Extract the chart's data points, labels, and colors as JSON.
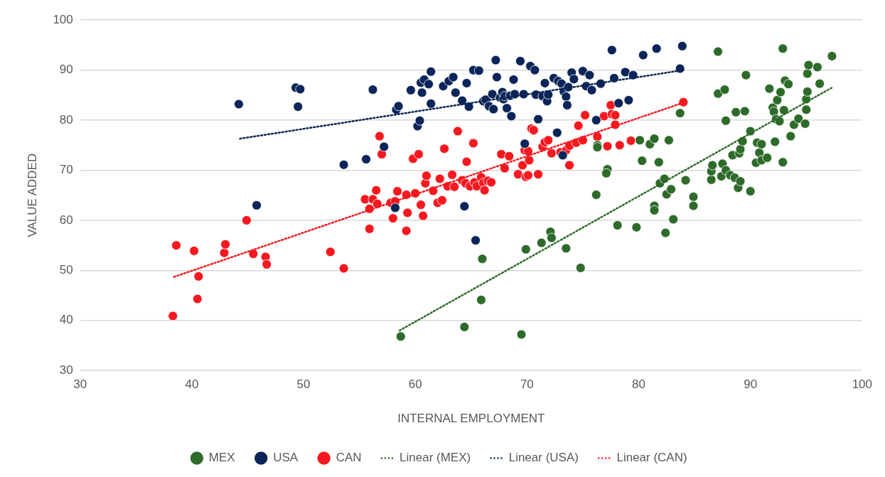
{
  "chart_data": {
    "type": "scatter",
    "xlabel": "INTERNAL EMPLOYMENT",
    "ylabel": "VALUE ADDED",
    "xlim": [
      30,
      100
    ],
    "xticks": [
      30,
      40,
      50,
      60,
      70,
      80,
      90,
      100
    ],
    "ylim": [
      30,
      100
    ],
    "yticks": [
      30,
      40,
      50,
      60,
      70,
      80,
      90,
      100
    ],
    "grid": "y",
    "legend": "bottom",
    "marker": "circle",
    "series": [
      {
        "name": "MEX",
        "color": "#2e6b2a",
        "x": [
          58.7,
          64.4,
          65.9,
          66,
          69.5,
          69.9,
          71.3,
          72.1,
          72.2,
          73.5,
          74.8,
          76.2,
          76.3,
          76.3,
          77.2,
          77.1,
          78.1,
          79.8,
          80.3,
          80.1,
          81.0,
          81.4,
          81.4,
          81.4,
          81.8,
          81.9,
          82.3,
          82.4,
          82.5,
          82.7,
          82.9,
          83.1,
          83.7,
          84.2,
          84.9,
          84.9,
          86.5,
          86.5,
          86.6,
          87.1,
          87.1,
          87.4,
          87.5,
          87.7,
          87.8,
          87.8,
          88.2,
          88.4,
          88.6,
          88.7,
          88.9,
          89.1,
          89.0,
          89.1,
          89.3,
          89.5,
          89.6,
          90.0,
          90.0,
          90.5,
          90.6,
          90.8,
          91.0,
          91.0,
          91.5,
          91.7,
          92.0,
          92.1,
          92.2,
          92.3,
          92.4,
          92.6,
          92.7,
          92.9,
          92.9,
          93.0,
          93.1,
          93.4,
          93.6,
          93.9,
          94.3,
          94.9,
          95.0,
          95.0,
          95.1,
          95.1,
          95.2,
          96.0,
          96.2,
          97.3
        ],
        "values": [
          36.8,
          38.7,
          44.1,
          52.3,
          37.2,
          54.2,
          55.5,
          57.7,
          56.5,
          54.4,
          50.5,
          65.1,
          75.0,
          74.6,
          70.2,
          69.4,
          59.0,
          58.6,
          71.9,
          76.0,
          75.2,
          76.3,
          62.9,
          62.0,
          71.6,
          67.4,
          68.3,
          57.5,
          65.2,
          76.0,
          66.2,
          60.2,
          81.4,
          68.0,
          64.7,
          62.9,
          68.1,
          69.8,
          71.0,
          93.7,
          85.3,
          68.8,
          71.3,
          86.1,
          70.0,
          79.9,
          69.0,
          73.0,
          68.5,
          81.6,
          66.5,
          67.8,
          73.4,
          74.2,
          75.8,
          81.8,
          89.0,
          77.8,
          65.8,
          71.5,
          75.5,
          73.5,
          72.0,
          75.2,
          72.5,
          86.3,
          82.5,
          81.7,
          75.7,
          80.2,
          84.0,
          79.8,
          85.6,
          71.6,
          94.3,
          82.0,
          87.9,
          87.2,
          76.8,
          79.1,
          80.3,
          79.3,
          84.2,
          82.1,
          85.7,
          89.3,
          91.0,
          90.6,
          87.3,
          92.8
        ]
      },
      {
        "name": "USA",
        "color": "#0b2559",
        "x": [
          44.2,
          45.8,
          49.3,
          49.5,
          49.7,
          53.6,
          55.6,
          56.2,
          57.2,
          58.2,
          58.3,
          58.5,
          59.6,
          60.2,
          60.4,
          60.5,
          60.6,
          60.8,
          61.2,
          61.4,
          61.4,
          62.5,
          63.0,
          63.4,
          63.6,
          64.2,
          64.4,
          64.6,
          64.8,
          65.2,
          65.4,
          65.7,
          66.1,
          66.3,
          66.6,
          66.9,
          67.0,
          67.2,
          67.3,
          67.6,
          67.8,
          67.9,
          68.0,
          68.2,
          68.5,
          68.6,
          68.8,
          68.9,
          69.4,
          69.7,
          69.8,
          70.3,
          70.7,
          70.8,
          71.0,
          71.4,
          71.6,
          71.8,
          71.9,
          72.4,
          72.8,
          73.1,
          73.3,
          73.5,
          73.6,
          73.7,
          74.0,
          74.2,
          75.0,
          75.3,
          75.8,
          75.6,
          76.2,
          76.6,
          77.6,
          77.8,
          78.2,
          78.8,
          79.1,
          79.5,
          80.4,
          81.6,
          83.7,
          83.9,
          72.7,
          73.2
        ],
        "values": [
          83.2,
          63.0,
          86.5,
          82.7,
          86.2,
          71.1,
          72.2,
          86.1,
          74.7,
          62.5,
          82.1,
          82.8,
          86.0,
          78.8,
          79.9,
          87.5,
          85.5,
          88.1,
          87.2,
          89.7,
          83.3,
          86.8,
          87.8,
          88.6,
          85.5,
          83.9,
          62.8,
          87.4,
          82.7,
          90.0,
          56.0,
          89.9,
          83.8,
          84.1,
          82.8,
          85.2,
          82.2,
          92.0,
          88.6,
          84.5,
          85.6,
          84.2,
          84.8,
          82.4,
          84.9,
          80.8,
          88.1,
          85.2,
          91.8,
          85.2,
          75.3,
          90.8,
          90.0,
          85.1,
          80.2,
          84.8,
          87.4,
          83.8,
          85.1,
          88.4,
          87.8,
          87.3,
          85.7,
          84.7,
          83.0,
          86.6,
          89.5,
          88.2,
          89.8,
          86.8,
          86.0,
          89.0,
          80.0,
          87.3,
          94.0,
          88.4,
          83.4,
          89.6,
          84.0,
          89.0,
          93.0,
          94.3,
          90.3,
          94.8,
          77.5,
          73.0
        ]
      },
      {
        "name": "CAN",
        "color": "#f5191f",
        "x": [
          38.3,
          38.6,
          40.2,
          40.5,
          40.6,
          42.9,
          43.0,
          44.9,
          45.5,
          46.6,
          46.7,
          52.4,
          53.6,
          55.5,
          55.9,
          55.9,
          56.2,
          56.5,
          56.6,
          56.8,
          57.0,
          57.8,
          58.0,
          58.2,
          58.4,
          59.2,
          59.3,
          59.2,
          59.8,
          60.0,
          60.3,
          60.5,
          60.7,
          60.9,
          61.0,
          61.6,
          62.0,
          62.2,
          62.4,
          62.6,
          62.9,
          63.3,
          63.5,
          63.8,
          64.2,
          64.5,
          64.6,
          64.9,
          65.2,
          65.3,
          65.5,
          65.9,
          66.1,
          66.2,
          66.5,
          66.8,
          67.7,
          68.0,
          68.4,
          69.2,
          69.6,
          69.8,
          69.9,
          70.1,
          70.2,
          70.1,
          70.4,
          70.6,
          71.0,
          71.4,
          71.6,
          71.9,
          72.2,
          73.0,
          73.5,
          73.8,
          74.4,
          74.6,
          75.0,
          75.2,
          76.3,
          76.9,
          77.5,
          77.6,
          77.9,
          77.9,
          78.3,
          79.3,
          84.0,
          73.8,
          77.2
        ],
        "values": [
          40.9,
          55.0,
          53.9,
          44.3,
          48.8,
          53.5,
          55.2,
          60.0,
          53.3,
          52.7,
          51.2,
          53.7,
          50.4,
          64.2,
          58.3,
          62.3,
          64.2,
          66.0,
          63.3,
          76.8,
          73.2,
          63.5,
          60.4,
          63.8,
          65.8,
          57.9,
          61.5,
          65.1,
          72.3,
          65.4,
          73.2,
          63.1,
          60.9,
          67.4,
          68.9,
          65.9,
          63.5,
          68.3,
          64.0,
          74.3,
          66.8,
          69.1,
          66.7,
          77.8,
          68.0,
          67.4,
          71.7,
          66.8,
          75.4,
          67.6,
          66.8,
          68.6,
          67.5,
          66.0,
          67.9,
          67.6,
          73.2,
          70.4,
          72.8,
          69.2,
          71.0,
          74.0,
          68.7,
          69.0,
          72.0,
          73.8,
          78.3,
          78.0,
          69.2,
          74.7,
          75.6,
          76.0,
          73.4,
          73.6,
          74.0,
          74.9,
          75.5,
          78.9,
          76.0,
          81.0,
          76.7,
          80.8,
          83.0,
          81.2,
          79.1,
          81.0,
          75.0,
          75.9,
          83.6,
          71.0,
          74.8
        ]
      },
      {
        "name": "Linear (MEX)",
        "type": "line",
        "color": "#2e6b2a",
        "marker": "none",
        "line_style": "dotted",
        "x": [
          58.6,
          97.3
        ],
        "values": [
          38,
          86.5
        ]
      },
      {
        "name": "Linear (USA)",
        "type": "line",
        "color": "#0b2559",
        "marker": "none",
        "line_style": "dotted",
        "x": [
          44.3,
          84
        ],
        "values": [
          76.3,
          90
        ]
      },
      {
        "name": "Linear (CAN)",
        "type": "line",
        "color": "#f5191f",
        "marker": "none",
        "line_style": "dotted",
        "x": [
          38.4,
          84
        ],
        "values": [
          48.7,
          83.5
        ]
      }
    ]
  }
}
